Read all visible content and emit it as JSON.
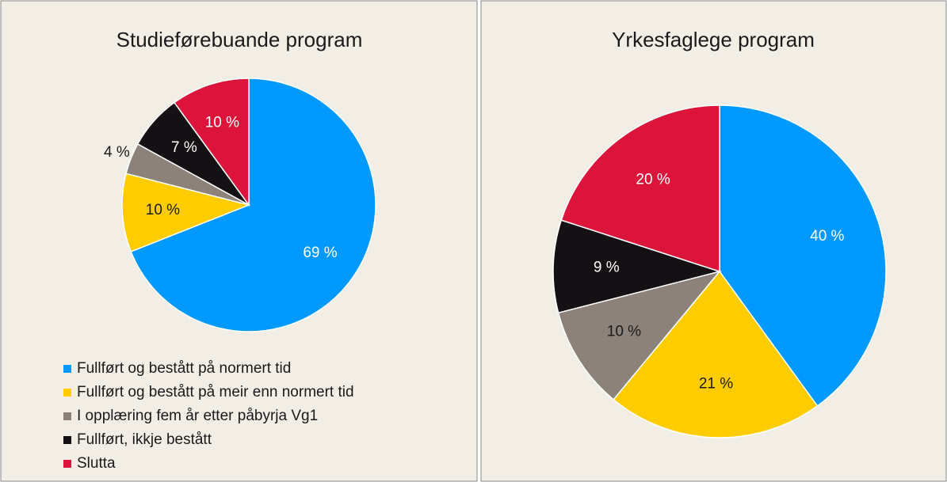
{
  "chart_data": [
    {
      "type": "pie",
      "title": "Studieførebuande program",
      "categories": [
        "Fullført og bestått på normert tid",
        "Fullført og bestått på meir enn normert tid",
        "I opplæring fem år etter påbyrja Vg1",
        "Fullført, ikkje bestått",
        "Slutta"
      ],
      "values": [
        69,
        10,
        4,
        7,
        10
      ],
      "value_labels": [
        "69 %",
        "10 %",
        "4 %",
        "7 %",
        "10 %"
      ],
      "colors": [
        "#0099ff",
        "#ffcc00",
        "#8c8279",
        "#141014",
        "#dc143c"
      ],
      "legend": "bottom"
    },
    {
      "type": "pie",
      "title": "Yrkesfaglege program",
      "values": [
        40,
        21,
        10,
        9,
        20
      ],
      "value_labels": [
        "40 %",
        "21 %",
        "10 %",
        "9 %",
        "20 %"
      ],
      "colors": [
        "#0099ff",
        "#ffcc00",
        "#8c8279",
        "#141014",
        "#dc143c"
      ]
    }
  ]
}
